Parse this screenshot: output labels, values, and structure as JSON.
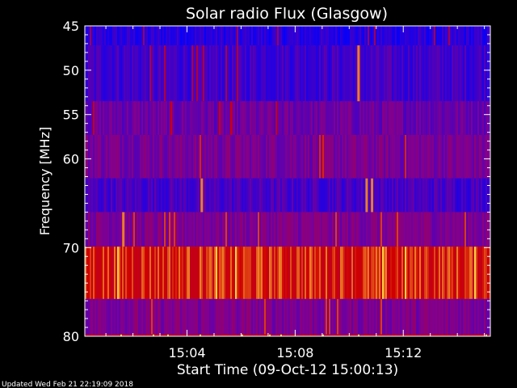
{
  "chart_data": {
    "type": "heatmap",
    "title": "Solar radio Flux (Glasgow)",
    "xlabel": "Start Time (09-Oct-12 15:00:13)",
    "ylabel": "Frequency [MHz]",
    "x_tick_labels": [
      "15:04",
      "15:08",
      "15:12"
    ],
    "x_tick_values_min": [
      4,
      8,
      12
    ],
    "xlim_min": [
      0.22,
      15.22
    ],
    "y_tick_labels": [
      "45",
      "50",
      "55",
      "60",
      "70",
      "80"
    ],
    "y_tick_values": [
      45,
      50,
      55,
      60,
      70,
      80
    ],
    "ylim": [
      80,
      45
    ],
    "bands": [
      {
        "f_start": 45,
        "f_end": 47.2,
        "level": 0.12
      },
      {
        "f_start": 47.2,
        "f_end": 53.5,
        "level": 0.2
      },
      {
        "f_start": 53.5,
        "f_end": 57.3,
        "level": 0.33
      },
      {
        "f_start": 57.3,
        "f_end": 62.2,
        "level": 0.38
      },
      {
        "f_start": 62.2,
        "f_end": 66.0,
        "level": 0.22
      },
      {
        "f_start": 66.0,
        "f_end": 69.9,
        "level": 0.4
      },
      {
        "f_start": 69.9,
        "f_end": 75.8,
        "level": 0.82
      },
      {
        "f_start": 75.8,
        "f_end": 79.8,
        "level": 0.4
      },
      {
        "f_start": 79.8,
        "f_end": 80,
        "level": 0.7
      }
    ],
    "bursts_min": [
      {
        "t": 10.3,
        "f_start": 47.2,
        "f_end": 53.5
      },
      {
        "t": 4.5,
        "f_start": 62.2,
        "f_end": 66.0
      },
      {
        "t": 10.6,
        "f_start": 62.2,
        "f_end": 66.0
      },
      {
        "t": 10.8,
        "f_start": 62.2,
        "f_end": 66.0
      },
      {
        "t": 1.6,
        "f_start": 66.0,
        "f_end": 69.9
      }
    ],
    "colors": {
      "low": "#0000ff",
      "mid": "#800090",
      "high": "#d00000",
      "peak": "#ffd040"
    }
  },
  "footer": "Updated Wed Feb 21 22:19:09 2018"
}
